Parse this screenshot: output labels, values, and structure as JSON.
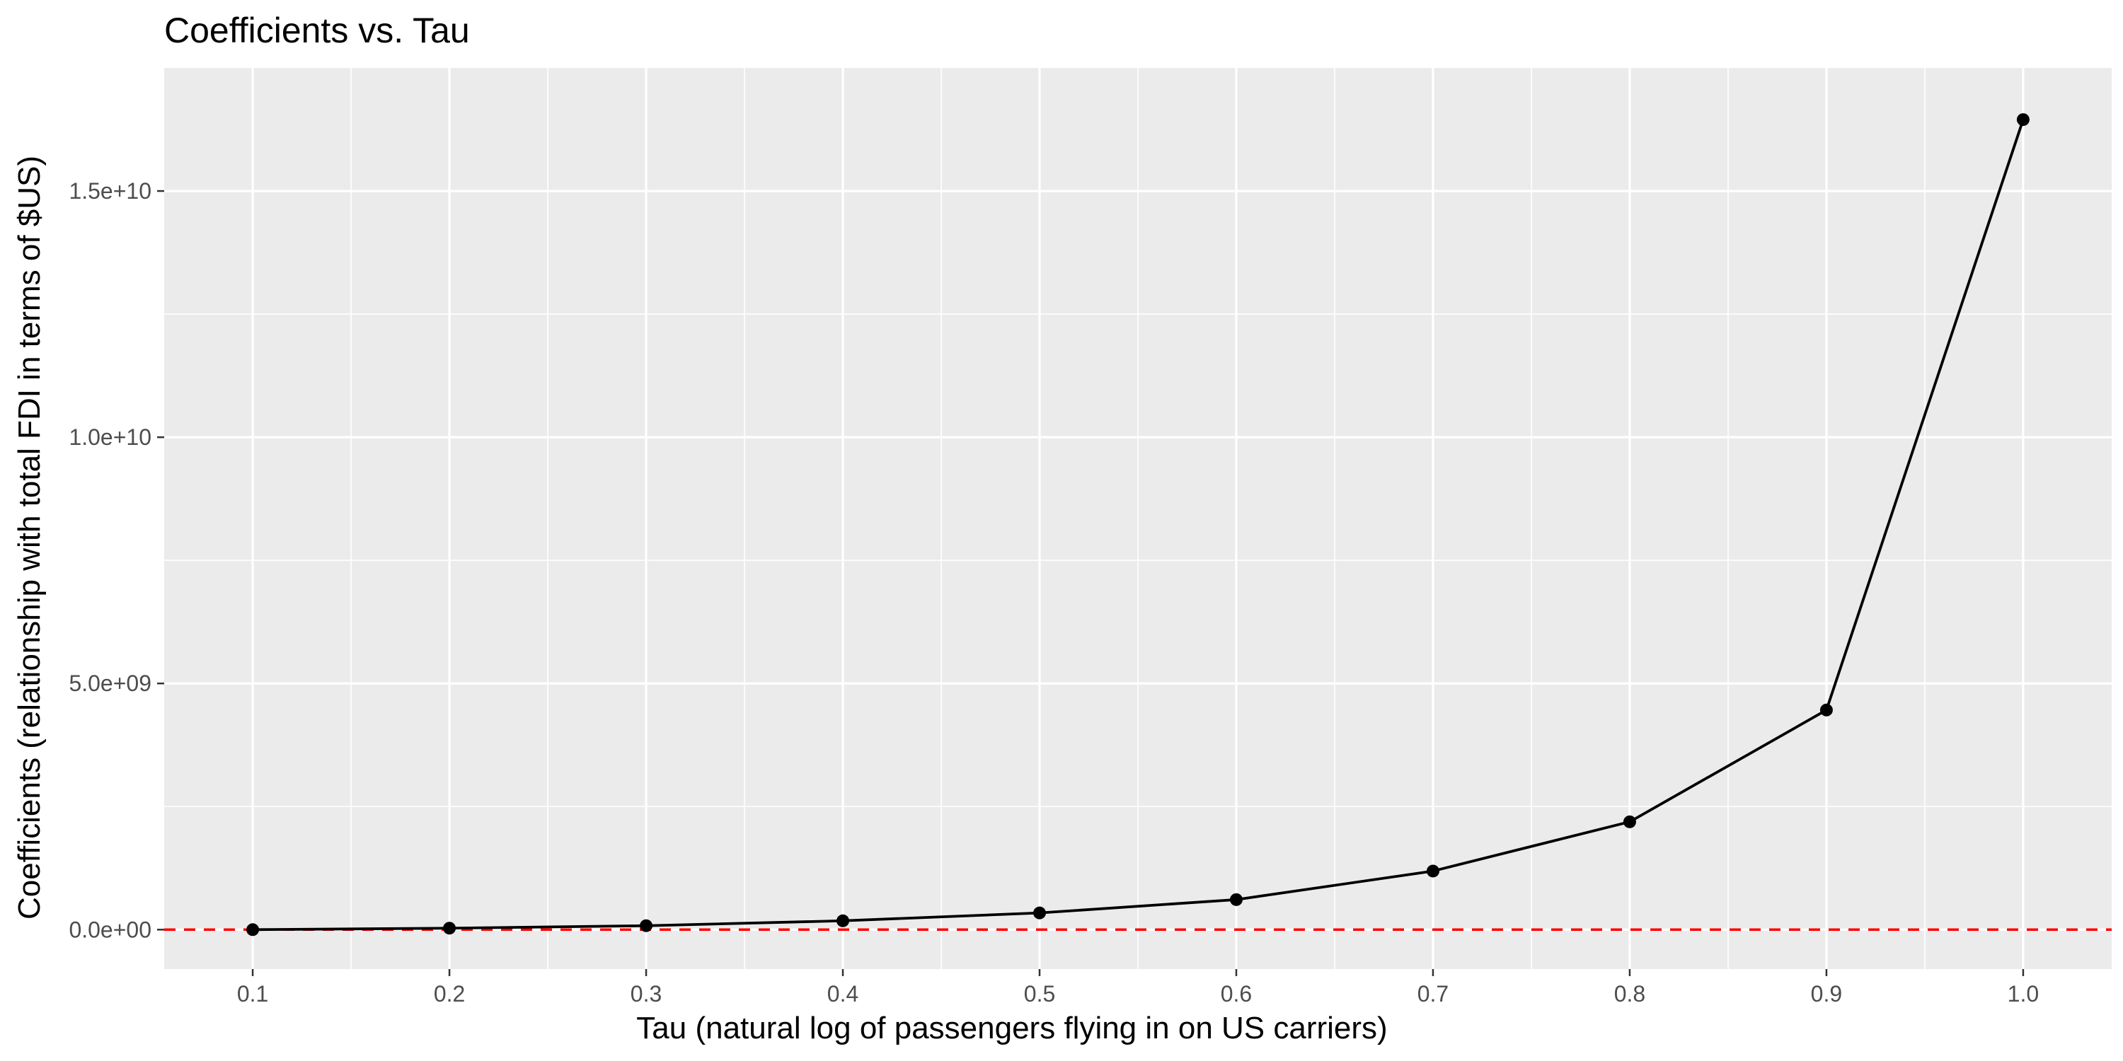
{
  "chart_data": {
    "type": "line",
    "title": "Coefficients vs. Tau",
    "xlabel": "Tau (natural log of passengers flying in on US carriers)",
    "ylabel": "Coefficients (relationship with total FDI in terms of $US)",
    "x_ticks": [
      "0.1",
      "0.2",
      "0.3",
      "0.4",
      "0.5",
      "0.6",
      "0.7",
      "0.8",
      "0.9",
      "1.0"
    ],
    "y_ticks": [
      "0.0e+00",
      "5.0e+09",
      "1.0e+10",
      "1.5e+10"
    ],
    "xlim": [
      0.055,
      1.045
    ],
    "ylim": [
      -800000000,
      17500000000
    ],
    "grid": true,
    "panel_background": "#ebebeb",
    "series": [
      {
        "x": [
          0.1,
          0.2,
          0.3,
          0.4,
          0.5,
          0.6,
          0.7,
          0.8,
          0.9,
          1.0
        ],
        "values": [
          0,
          30000000,
          80000000,
          180000000,
          340000000,
          610000000,
          1190000000,
          2190000000,
          4460000000,
          16450000000
        ],
        "color": "#000000"
      }
    ],
    "reference_line": {
      "y": 0,
      "color": "#ff0000",
      "style": "dashed"
    }
  }
}
